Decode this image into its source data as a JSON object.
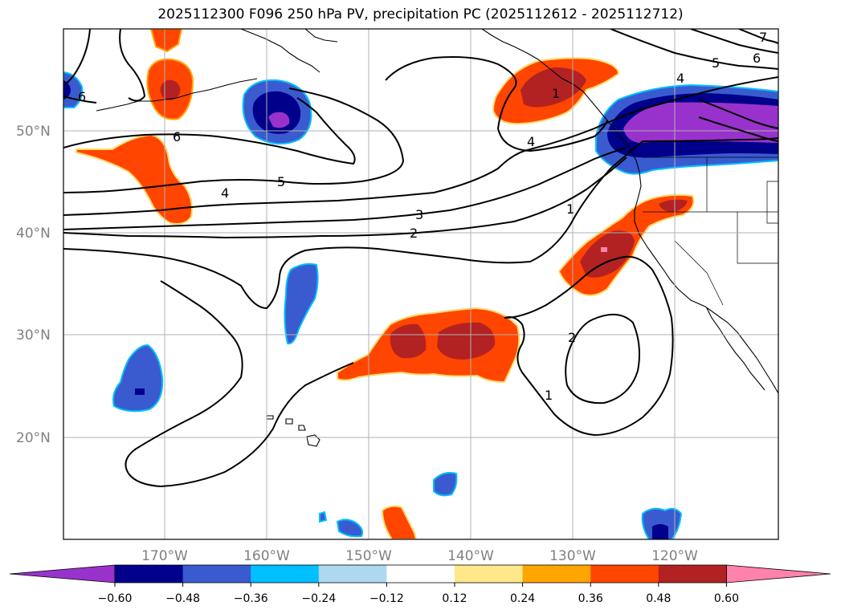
{
  "title": "2025112300 F096 250 hPa PV, precipitation PC (2025112612 - 2025112712)",
  "lat_labels": [
    "50°N",
    "40°N",
    "30°N",
    "20°N"
  ],
  "lon_labels": [
    "170°W",
    "160°W",
    "150°W",
    "140°W",
    "130°W",
    "120°W"
  ],
  "contour_labels": [
    "6",
    "6",
    "5",
    "4",
    "3",
    "2",
    "1",
    "4",
    "4",
    "5",
    "6",
    "7",
    "1",
    "2",
    "1"
  ],
  "colorbar": {
    "ticks": [
      "−0.60",
      "−0.48",
      "−0.36",
      "−0.24",
      "−0.12",
      "0.12",
      "0.24",
      "0.36",
      "0.48",
      "0.60"
    ],
    "colors": {
      "below": "#9932cc",
      "neg060": "#00008b",
      "neg048": "#3a5bd0",
      "neg036": "#00bfff",
      "neg024": "#add8f0",
      "neutral": "#ffffff",
      "pos012": "#ffe88a",
      "pos024": "#ffa500",
      "pos036": "#ff4500",
      "pos048": "#b22222",
      "above": "#ff82ab"
    }
  }
}
